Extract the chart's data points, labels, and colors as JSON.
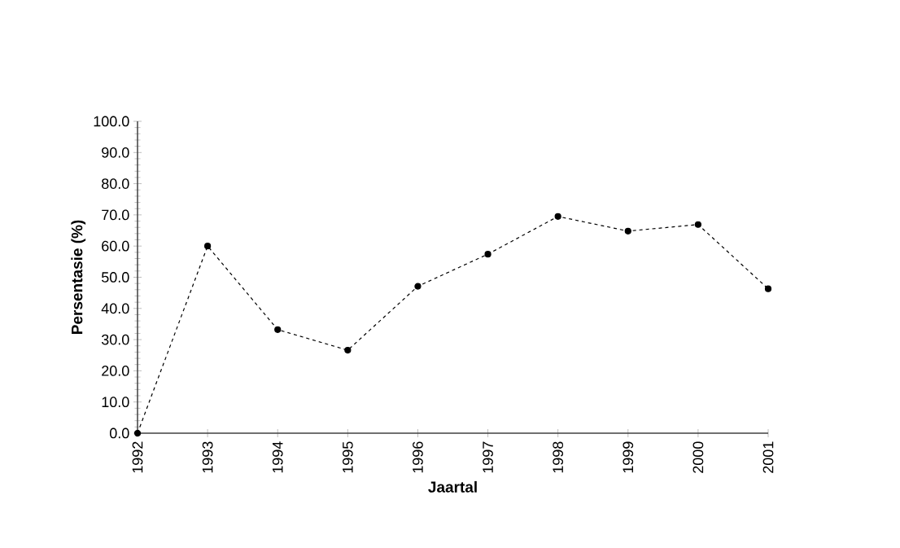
{
  "chart_data": {
    "type": "line",
    "xlabel": "Jaartal",
    "ylabel": "Persentasie (%)",
    "categories": [
      "1992",
      "1993",
      "1994",
      "1995",
      "1996",
      "1997",
      "1998",
      "1999",
      "2000",
      "2001"
    ],
    "values": [
      0,
      60.0,
      33.2,
      26.6,
      47.1,
      57.4,
      69.5,
      64.8,
      66.9,
      46.3
    ],
    "color": "#000000",
    "marker": "circle",
    "line_style": "dashed",
    "ylim": [
      0,
      100
    ],
    "yticks": [
      {
        "value": 0,
        "label": "0.0"
      },
      {
        "value": 10,
        "label": "10.0"
      },
      {
        "value": 20,
        "label": "20.0"
      },
      {
        "value": 30,
        "label": "30.0"
      },
      {
        "value": 40,
        "label": "40.0"
      },
      {
        "value": 50,
        "label": "50.0"
      },
      {
        "value": 60,
        "label": "60.0"
      },
      {
        "value": 70,
        "label": "70.0"
      },
      {
        "value": 80,
        "label": "80.0"
      },
      {
        "value": 90,
        "label": "90.0"
      },
      {
        "value": 100,
        "label": "100.0"
      }
    ]
  }
}
